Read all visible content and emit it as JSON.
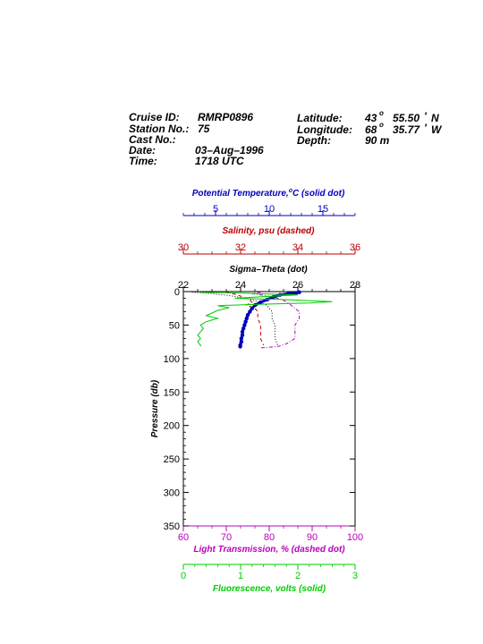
{
  "header": {
    "cruise_id_label": "Cruise ID:",
    "cruise_id": "RMRP0896",
    "station_label": "Station No.:",
    "station": "75",
    "cast_label": "Cast No.:",
    "cast": "",
    "date_label": "Date:",
    "date": "03–Aug–1996",
    "time_label": "Time:",
    "time": "1718 UTC",
    "lat_label": "Latitude:",
    "lat_deg": "43",
    "lat_min": "55.50",
    "lat_hem": "N",
    "lon_label": "Longitude:",
    "lon_deg": "68",
    "lon_min": "35.77",
    "lon_hem": "W",
    "depth_label": "Depth:",
    "depth": "90 m",
    "deg_mark": "o",
    "min_mark": "'"
  },
  "colors": {
    "temperature": "#0000bb",
    "salinity": "#bb0000",
    "sigma": "#000000",
    "transmission": "#bb00bb",
    "fluorescence": "#00cc00"
  },
  "chart_data": {
    "type": "line",
    "y_axis": {
      "label": "Pressure (db)",
      "range": [
        0,
        350
      ],
      "ticks": [
        "0",
        "50",
        "100",
        "150",
        "200",
        "250",
        "300",
        "350"
      ],
      "inverted": true
    },
    "top_axes": [
      {
        "key": "temperature",
        "title": "Potential Temperature,",
        "title_sup": "o",
        "title_rest": "C (solid dot)",
        "range": [
          2,
          18
        ],
        "ticks": [
          {
            "v": 5,
            "t": "5"
          },
          {
            "v": 10,
            "t": "10"
          },
          {
            "v": 15,
            "t": "15"
          }
        ]
      },
      {
        "key": "salinity",
        "title": "Salinity, psu  (dashed)",
        "range": [
          30,
          36
        ],
        "ticks": [
          {
            "v": 30,
            "t": "30"
          },
          {
            "v": 32,
            "t": "32"
          },
          {
            "v": 34,
            "t": "34"
          },
          {
            "v": 36,
            "t": "36"
          }
        ]
      },
      {
        "key": "sigma",
        "title": "Sigma–Theta (dot)",
        "range": [
          22,
          28
        ],
        "ticks": [
          {
            "v": 22,
            "t": "22"
          },
          {
            "v": 24,
            "t": "24"
          },
          {
            "v": 26,
            "t": "26"
          },
          {
            "v": 28,
            "t": "28"
          }
        ]
      }
    ],
    "bottom_axes": [
      {
        "key": "transmission",
        "title": "Light Transmission, % (dashed dot)",
        "range": [
          60,
          100
        ],
        "ticks": [
          {
            "v": 60,
            "t": "60"
          },
          {
            "v": 70,
            "t": "70"
          },
          {
            "v": 80,
            "t": "80"
          },
          {
            "v": 90,
            "t": "90"
          },
          {
            "v": 100,
            "t": "100"
          }
        ]
      },
      {
        "key": "fluorescence",
        "title": "Fluorescence, volts (solid)",
        "range": [
          0,
          3
        ],
        "ticks": [
          {
            "v": 0,
            "t": "0"
          },
          {
            "v": 1,
            "t": "1"
          },
          {
            "v": 2,
            "t": "2"
          },
          {
            "v": 3,
            "t": "3"
          }
        ]
      }
    ],
    "series": [
      {
        "key": "temperature",
        "axis": "temperature",
        "style": "solid-dot",
        "points": [
          [
            12.8,
            1
          ],
          [
            12.5,
            2
          ],
          [
            11.8,
            3
          ],
          [
            11.0,
            5
          ],
          [
            10.4,
            8
          ],
          [
            9.8,
            12
          ],
          [
            9.2,
            16
          ],
          [
            8.7,
            20
          ],
          [
            8.4,
            25
          ],
          [
            8.2,
            30
          ],
          [
            8.0,
            35
          ],
          [
            7.9,
            40
          ],
          [
            7.8,
            45
          ],
          [
            7.7,
            50
          ],
          [
            7.6,
            55
          ],
          [
            7.5,
            60
          ],
          [
            7.5,
            65
          ],
          [
            7.4,
            70
          ],
          [
            7.4,
            75
          ],
          [
            7.3,
            80
          ],
          [
            7.3,
            82
          ]
        ]
      },
      {
        "key": "salinity",
        "axis": "salinity",
        "style": "dashed",
        "points": [
          [
            31.5,
            1
          ],
          [
            31.8,
            4
          ],
          [
            32.1,
            8
          ],
          [
            32.3,
            12
          ],
          [
            32.4,
            16
          ],
          [
            32.2,
            20
          ],
          [
            32.5,
            25
          ],
          [
            32.6,
            30
          ],
          [
            32.6,
            40
          ],
          [
            32.7,
            50
          ],
          [
            32.7,
            60
          ],
          [
            32.7,
            70
          ],
          [
            32.8,
            80
          ]
        ]
      },
      {
        "key": "sigma",
        "axis": "sigma",
        "style": "dot",
        "points": [
          [
            22.3,
            1
          ],
          [
            23.0,
            3
          ],
          [
            23.6,
            6
          ],
          [
            24.2,
            10
          ],
          [
            24.6,
            15
          ],
          [
            24.9,
            20
          ],
          [
            25.0,
            25
          ],
          [
            25.1,
            30
          ],
          [
            25.1,
            40
          ],
          [
            25.2,
            50
          ],
          [
            25.2,
            60
          ],
          [
            25.2,
            70
          ],
          [
            25.3,
            80
          ]
        ]
      },
      {
        "key": "transmission",
        "axis": "transmission",
        "style": "dashed-dot",
        "points": [
          [
            78,
            1
          ],
          [
            76,
            3
          ],
          [
            79,
            6
          ],
          [
            82,
            10
          ],
          [
            84,
            15
          ],
          [
            85,
            20
          ],
          [
            86,
            25
          ],
          [
            87,
            30
          ],
          [
            87,
            40
          ],
          [
            86,
            50
          ],
          [
            86,
            60
          ],
          [
            86,
            70
          ],
          [
            84,
            78
          ],
          [
            82,
            82
          ],
          [
            78,
            84
          ]
        ]
      },
      {
        "key": "fluorescence",
        "axis": "fluorescence",
        "style": "solid",
        "points": [
          [
            0.3,
            1
          ],
          [
            0.9,
            2
          ],
          [
            2.0,
            5
          ],
          [
            1.3,
            8
          ],
          [
            0.9,
            10
          ],
          [
            1.8,
            12
          ],
          [
            2.6,
            15
          ],
          [
            2.2,
            17
          ],
          [
            1.3,
            19
          ],
          [
            0.6,
            21
          ],
          [
            0.8,
            24
          ],
          [
            0.6,
            28
          ],
          [
            0.5,
            32
          ],
          [
            0.4,
            36
          ],
          [
            0.6,
            40
          ],
          [
            0.4,
            45
          ],
          [
            0.3,
            50
          ],
          [
            0.35,
            55
          ],
          [
            0.3,
            60
          ],
          [
            0.25,
            65
          ],
          [
            0.3,
            70
          ],
          [
            0.25,
            75
          ],
          [
            0.3,
            80
          ],
          [
            0.3,
            82
          ]
        ]
      }
    ]
  }
}
